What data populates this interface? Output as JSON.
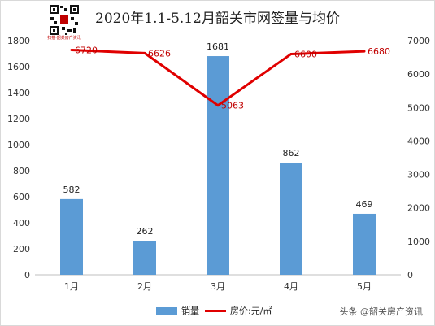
{
  "header": {
    "title": "2020年1.1-5.12月韶关市网签量与均价",
    "qr_caption": "扫描·韶关房产资讯"
  },
  "legend": {
    "bar_label": "销量",
    "line_label": "房价:元/㎡"
  },
  "watermark": "头条 @韶关房产资讯",
  "colors": {
    "bar": "#5b9bd5",
    "line": "#e00000",
    "line_label": "#c00000"
  },
  "chart_data": {
    "type": "bar",
    "title": "2020年1.1-5.12月韶关市网签量与均价",
    "categories": [
      "1月",
      "2月",
      "3月",
      "4月",
      "5月"
    ],
    "series": [
      {
        "name": "销量",
        "type": "bar",
        "axis": "left",
        "values": [
          582,
          262,
          1681,
          862,
          469
        ]
      },
      {
        "name": "房价:元/㎡",
        "type": "line",
        "axis": "right",
        "values": [
          6720,
          6626,
          5063,
          6600,
          6680
        ],
        "labels": [
          "6720",
          "6626",
          "5063",
          "6600",
          "6680"
        ]
      }
    ],
    "ylim_left": [
      0,
      1800
    ],
    "yticks_left": [
      0,
      200,
      400,
      600,
      800,
      1000,
      1200,
      1400,
      1600,
      1800
    ],
    "ylim_right": [
      0,
      7000
    ],
    "yticks_right": [
      0,
      1000,
      2000,
      3000,
      4000,
      5000,
      6000,
      7000
    ],
    "grid": false,
    "legend_position": "bottom"
  }
}
